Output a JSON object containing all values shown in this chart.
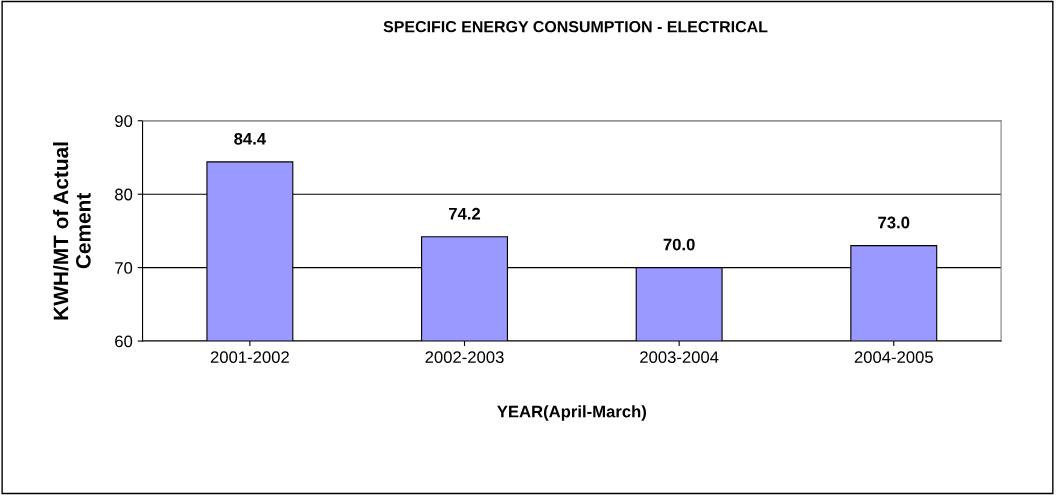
{
  "chart_data": {
    "type": "bar",
    "title": "SPECIFIC ENERGY CONSUMPTION - ELECTRICAL",
    "xlabel": "YEAR(April-March)",
    "ylabel": "KWH/MT of Actual\nCement",
    "categories": [
      "2001-2002",
      "2002-2003",
      "2003-2004",
      "2004-2005"
    ],
    "values": [
      84.4,
      74.2,
      70.0,
      73.0
    ],
    "value_labels": [
      "84.4",
      "74.2",
      "70.0",
      "73.0"
    ],
    "color": "#9999ff",
    "ylim": [
      60,
      90
    ],
    "yticks": [
      60,
      70,
      80,
      90
    ],
    "grid": "y",
    "legend": false
  }
}
